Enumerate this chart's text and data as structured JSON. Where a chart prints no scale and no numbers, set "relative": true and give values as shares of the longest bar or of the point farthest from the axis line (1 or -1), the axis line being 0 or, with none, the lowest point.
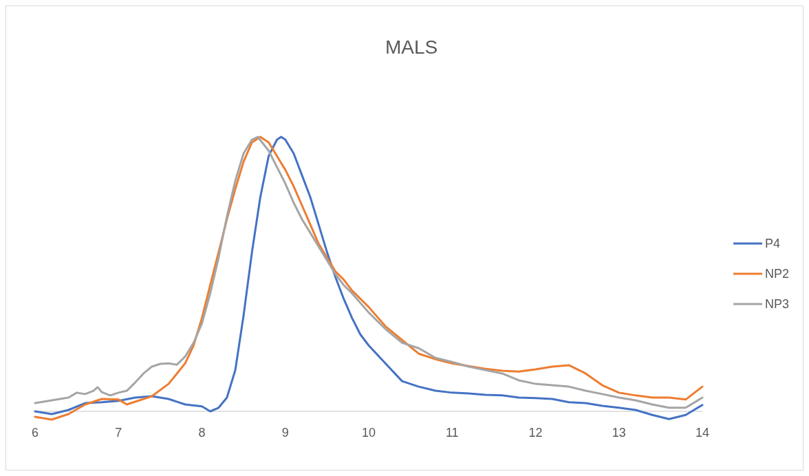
{
  "chart_data": {
    "type": "line",
    "title": "MALS",
    "relative": true,
    "legend": "right",
    "marker": "none",
    "line_style": "solid",
    "xlim": [
      6,
      14
    ],
    "xticks": [
      6,
      7,
      8,
      9,
      10,
      11,
      12,
      13,
      14
    ],
    "series": [
      {
        "name": "P4",
        "color": "#4472c4",
        "x": [
          6,
          6.2,
          6.4,
          6.6,
          6.8,
          7,
          7.2,
          7.4,
          7.6,
          7.8,
          8,
          8.1,
          8.2,
          8.3,
          8.4,
          8.5,
          8.6,
          8.7,
          8.8,
          8.9,
          8.95,
          9,
          9.1,
          9.2,
          9.3,
          9.4,
          9.5,
          9.6,
          9.7,
          9.8,
          9.9,
          10,
          10.2,
          10.4,
          10.6,
          10.8,
          11,
          11.2,
          11.4,
          11.6,
          11.8,
          12,
          12.2,
          12.4,
          12.6,
          12.8,
          13,
          13.2,
          13.4,
          13.6,
          13.8,
          14
        ],
        "values": [
          0,
          -0.01,
          0.005,
          0.03,
          0.033,
          0.038,
          0.05,
          0.055,
          0.045,
          0.025,
          0.018,
          0,
          0.013,
          0.05,
          0.15,
          0.35,
          0.58,
          0.78,
          0.93,
          0.99,
          1,
          0.99,
          0.94,
          0.86,
          0.78,
          0.68,
          0.58,
          0.49,
          0.41,
          0.34,
          0.28,
          0.24,
          0.175,
          0.11,
          0.09,
          0.075,
          0.068,
          0.065,
          0.06,
          0.058,
          0.05,
          0.048,
          0.045,
          0.033,
          0.03,
          0.02,
          0.013,
          0.005,
          -0.013,
          -0.028,
          -0.013,
          0.023
        ]
      },
      {
        "name": "NP2",
        "color": "#ed7d31",
        "x": [
          6,
          6.2,
          6.4,
          6.6,
          6.8,
          7,
          7.1,
          7.2,
          7.4,
          7.6,
          7.8,
          7.9,
          8,
          8.1,
          8.2,
          8.3,
          8.4,
          8.5,
          8.6,
          8.7,
          8.8,
          8.9,
          9,
          9.1,
          9.2,
          9.3,
          9.4,
          9.5,
          9.6,
          9.7,
          9.8,
          10,
          10.2,
          10.4,
          10.6,
          10.8,
          11,
          11.2,
          11.4,
          11.6,
          11.8,
          12,
          12.2,
          12.4,
          12.6,
          12.8,
          13,
          13.2,
          13.4,
          13.6,
          13.8,
          14
        ],
        "values": [
          -0.02,
          -0.03,
          -0.01,
          0.025,
          0.045,
          0.043,
          0.025,
          0.035,
          0.055,
          0.1,
          0.175,
          0.24,
          0.34,
          0.46,
          0.58,
          0.7,
          0.81,
          0.91,
          0.98,
          1,
          0.98,
          0.93,
          0.88,
          0.82,
          0.75,
          0.68,
          0.61,
          0.56,
          0.51,
          0.48,
          0.44,
          0.38,
          0.31,
          0.26,
          0.21,
          0.19,
          0.175,
          0.165,
          0.155,
          0.148,
          0.145,
          0.153,
          0.163,
          0.168,
          0.138,
          0.095,
          0.068,
          0.058,
          0.05,
          0.05,
          0.043,
          0.09
        ]
      },
      {
        "name": "NP3",
        "color": "#a5a5a5",
        "x": [
          6,
          6.2,
          6.4,
          6.5,
          6.6,
          6.7,
          6.75,
          6.8,
          6.9,
          7,
          7.1,
          7.2,
          7.3,
          7.4,
          7.5,
          7.6,
          7.7,
          7.8,
          7.9,
          8,
          8.1,
          8.2,
          8.3,
          8.4,
          8.5,
          8.6,
          8.67,
          8.8,
          8.9,
          9,
          9.1,
          9.2,
          9.3,
          9.4,
          9.5,
          9.6,
          9.7,
          9.8,
          10,
          10.2,
          10.4,
          10.6,
          10.8,
          11,
          11.2,
          11.4,
          11.6,
          11.8,
          12,
          12.2,
          12.4,
          12.6,
          12.8,
          13,
          13.2,
          13.4,
          13.6,
          13.8,
          14
        ],
        "values": [
          0.03,
          0.04,
          0.05,
          0.068,
          0.063,
          0.075,
          0.088,
          0.07,
          0.058,
          0.068,
          0.075,
          0.105,
          0.138,
          0.163,
          0.173,
          0.175,
          0.17,
          0.2,
          0.25,
          0.32,
          0.43,
          0.56,
          0.71,
          0.84,
          0.94,
          0.99,
          1,
          0.95,
          0.89,
          0.83,
          0.76,
          0.7,
          0.65,
          0.6,
          0.55,
          0.5,
          0.46,
          0.43,
          0.36,
          0.3,
          0.25,
          0.23,
          0.195,
          0.18,
          0.163,
          0.15,
          0.138,
          0.113,
          0.1,
          0.095,
          0.09,
          0.075,
          0.063,
          0.05,
          0.04,
          0.025,
          0.013,
          0.013,
          0.05
        ]
      }
    ]
  }
}
